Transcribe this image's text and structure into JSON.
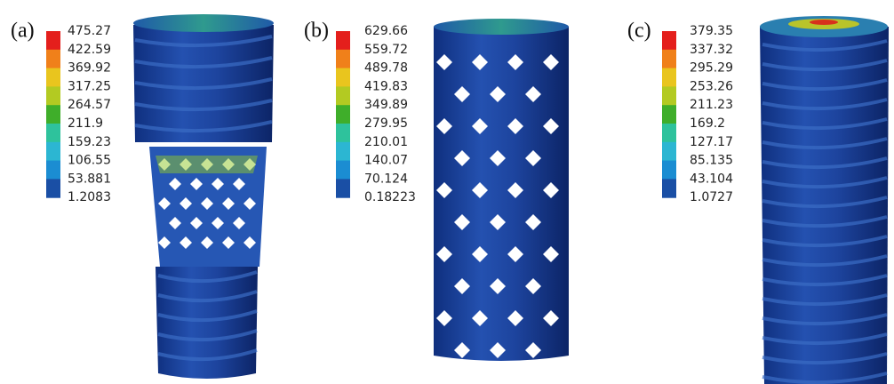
{
  "panels": [
    {
      "label": "(a)",
      "legend": {
        "values": [
          475.27,
          422.59,
          369.92,
          317.25,
          264.57,
          211.9,
          159.23,
          106.55,
          53.881,
          1.2083
        ]
      }
    },
    {
      "label": "(b)",
      "legend": {
        "values": [
          629.66,
          559.72,
          489.78,
          419.83,
          349.89,
          279.95,
          210.01,
          140.07,
          70.124,
          0.18223
        ]
      }
    },
    {
      "label": "(c)",
      "legend": {
        "values": [
          379.35,
          337.32,
          295.29,
          253.26,
          211.23,
          169.2,
          127.17,
          85.135,
          43.104,
          1.0727
        ]
      }
    }
  ],
  "colormap": [
    "#e41f1c",
    "#f0801a",
    "#e9c51e",
    "#b3ca22",
    "#3fae2a",
    "#2ec29c",
    "#2cb6d2",
    "#1b8dd2",
    "#1a4fa5"
  ]
}
